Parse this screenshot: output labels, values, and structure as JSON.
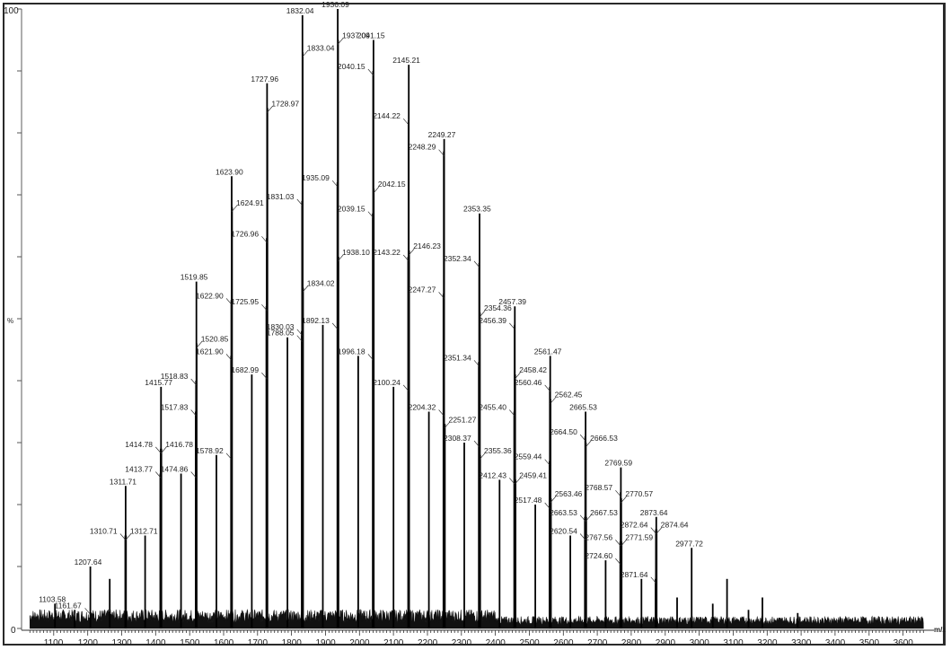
{
  "chart_data": {
    "type": "bar",
    "subtype": "mass-spectrum-stick",
    "title": "",
    "xlabel": "m/z",
    "ylabel": "%",
    "xlim": [
      1030,
      3680
    ],
    "ylim": [
      0,
      100
    ],
    "grid": false,
    "legend": null,
    "x_ticks": [
      1100,
      1200,
      1300,
      1400,
      1500,
      1600,
      1700,
      1800,
      1900,
      2000,
      2100,
      2200,
      2300,
      2400,
      2500,
      2600,
      2700,
      2800,
      2900,
      3000,
      3100,
      3200,
      3300,
      3400,
      3500,
      3600
    ],
    "y_ticks_labeled": [
      0,
      100
    ],
    "y_minor_ticks": [
      10,
      20,
      30,
      40,
      50,
      60,
      70,
      80,
      90
    ],
    "peaks": [
      {
        "mz": 1103.58,
        "intensity": 4,
        "label": "1103.58",
        "labeled": true
      },
      {
        "mz": 1161.67,
        "intensity": 3,
        "label": "1161.67",
        "labeled": true
      },
      {
        "mz": 1207.64,
        "intensity": 10,
        "label": "1207.64",
        "labeled": true
      },
      {
        "mz": 1265.0,
        "intensity": 8,
        "labeled": false
      },
      {
        "mz": 1310.71,
        "intensity": 15,
        "label": "1310.71",
        "labeled": true
      },
      {
        "mz": 1311.71,
        "intensity": 23,
        "label": "1311.71",
        "labeled": true
      },
      {
        "mz": 1312.71,
        "intensity": 15,
        "label": "1312.71",
        "labeled": true
      },
      {
        "mz": 1369.0,
        "intensity": 15,
        "labeled": false
      },
      {
        "mz": 1413.77,
        "intensity": 25,
        "label": "1413.77",
        "labeled": true
      },
      {
        "mz": 1414.78,
        "intensity": 29,
        "label": "1414.78",
        "labeled": true
      },
      {
        "mz": 1415.77,
        "intensity": 39,
        "label": "1415.77",
        "labeled": true
      },
      {
        "mz": 1416.78,
        "intensity": 29,
        "label": "1416.78",
        "labeled": true
      },
      {
        "mz": 1474.86,
        "intensity": 25,
        "label": "1474.86",
        "labeled": true
      },
      {
        "mz": 1517.83,
        "intensity": 35,
        "label": "1517.83",
        "labeled": true
      },
      {
        "mz": 1518.83,
        "intensity": 40,
        "label": "1518.83",
        "labeled": true
      },
      {
        "mz": 1519.85,
        "intensity": 56,
        "label": "1519.85",
        "labeled": true
      },
      {
        "mz": 1520.85,
        "intensity": 46,
        "label": "1520.85",
        "labeled": true
      },
      {
        "mz": 1578.92,
        "intensity": 28,
        "label": "1578.92",
        "labeled": true
      },
      {
        "mz": 1621.9,
        "intensity": 44,
        "label": "1621.90",
        "labeled": true
      },
      {
        "mz": 1622.9,
        "intensity": 53,
        "label": "1622.90",
        "labeled": true
      },
      {
        "mz": 1623.9,
        "intensity": 73,
        "label": "1623.90",
        "labeled": true
      },
      {
        "mz": 1624.91,
        "intensity": 68,
        "label": "1624.91",
        "labeled": true
      },
      {
        "mz": 1682.99,
        "intensity": 41,
        "label": "1682.99",
        "labeled": true
      },
      {
        "mz": 1725.95,
        "intensity": 52,
        "label": "1725.95",
        "labeled": true
      },
      {
        "mz": 1726.96,
        "intensity": 63,
        "label": "1726.96",
        "labeled": true
      },
      {
        "mz": 1727.96,
        "intensity": 88,
        "label": "1727.96",
        "labeled": true
      },
      {
        "mz": 1728.97,
        "intensity": 84,
        "label": "1728.97",
        "labeled": true
      },
      {
        "mz": 1788.05,
        "intensity": 47,
        "label": "1788.05",
        "labeled": true
      },
      {
        "mz": 1830.03,
        "intensity": 48,
        "label": "1830.03",
        "labeled": true
      },
      {
        "mz": 1831.03,
        "intensity": 69,
        "label": "1831.03",
        "labeled": true
      },
      {
        "mz": 1832.04,
        "intensity": 99,
        "label": "1832.04",
        "labeled": true
      },
      {
        "mz": 1833.04,
        "intensity": 93,
        "label": "1833.04",
        "labeled": true
      },
      {
        "mz": 1834.02,
        "intensity": 55,
        "label": "1834.02",
        "labeled": true
      },
      {
        "mz": 1892.13,
        "intensity": 49,
        "label": "1892.13",
        "labeled": true
      },
      {
        "mz": 1935.09,
        "intensity": 72,
        "label": "1935.09",
        "labeled": true
      },
      {
        "mz": 1936.09,
        "intensity": 100,
        "label": "1936.09",
        "labeled": true
      },
      {
        "mz": 1937.09,
        "intensity": 95,
        "label": "1937.09",
        "labeled": true
      },
      {
        "mz": 1938.1,
        "intensity": 60,
        "label": "1938.10",
        "labeled": true
      },
      {
        "mz": 1996.18,
        "intensity": 44,
        "label": "1996.18",
        "labeled": true
      },
      {
        "mz": 2039.15,
        "intensity": 67,
        "label": "2039.15",
        "labeled": true
      },
      {
        "mz": 2040.15,
        "intensity": 90,
        "label": "2040.15",
        "labeled": true
      },
      {
        "mz": 2041.15,
        "intensity": 95,
        "label": "2041.15",
        "labeled": true
      },
      {
        "mz": 2042.15,
        "intensity": 71,
        "label": "2042.15",
        "labeled": true
      },
      {
        "mz": 2100.24,
        "intensity": 39,
        "label": "2100.24",
        "labeled": true
      },
      {
        "mz": 2143.22,
        "intensity": 60,
        "label": "2143.22",
        "labeled": true
      },
      {
        "mz": 2144.22,
        "intensity": 82,
        "label": "2144.22",
        "labeled": true
      },
      {
        "mz": 2145.21,
        "intensity": 91,
        "label": "2145.21",
        "labeled": true
      },
      {
        "mz": 2146.23,
        "intensity": 61,
        "label": "2146.23",
        "labeled": true
      },
      {
        "mz": 2204.32,
        "intensity": 35,
        "label": "2204.32",
        "labeled": true
      },
      {
        "mz": 2247.27,
        "intensity": 54,
        "label": "2247.27",
        "labeled": true
      },
      {
        "mz": 2248.29,
        "intensity": 77,
        "label": "2248.29",
        "labeled": true
      },
      {
        "mz": 2249.27,
        "intensity": 79,
        "label": "2249.27",
        "labeled": true
      },
      {
        "mz": 2251.27,
        "intensity": 33,
        "label": "2251.27",
        "labeled": true
      },
      {
        "mz": 2308.37,
        "intensity": 30,
        "label": "2308.37",
        "labeled": true
      },
      {
        "mz": 2351.34,
        "intensity": 43,
        "label": "2351.34",
        "labeled": true
      },
      {
        "mz": 2352.34,
        "intensity": 59,
        "label": "2352.34",
        "labeled": true
      },
      {
        "mz": 2353.35,
        "intensity": 67,
        "label": "2353.35",
        "labeled": true
      },
      {
        "mz": 2354.36,
        "intensity": 51,
        "label": "2354.36",
        "labeled": true
      },
      {
        "mz": 2355.36,
        "intensity": 28,
        "label": "2355.36",
        "labeled": true
      },
      {
        "mz": 2412.43,
        "intensity": 24,
        "label": "2412.43",
        "labeled": true
      },
      {
        "mz": 2455.4,
        "intensity": 35,
        "label": "2455.40",
        "labeled": true
      },
      {
        "mz": 2456.39,
        "intensity": 49,
        "label": "2456.39",
        "labeled": true
      },
      {
        "mz": 2457.39,
        "intensity": 52,
        "label": "2457.39",
        "labeled": true
      },
      {
        "mz": 2458.42,
        "intensity": 41,
        "label": "2458.42",
        "labeled": true
      },
      {
        "mz": 2459.41,
        "intensity": 24,
        "label": "2459.41",
        "labeled": true
      },
      {
        "mz": 2517.48,
        "intensity": 20,
        "label": "2517.48",
        "labeled": true
      },
      {
        "mz": 2559.44,
        "intensity": 27,
        "label": "2559.44",
        "labeled": true
      },
      {
        "mz": 2560.46,
        "intensity": 39,
        "label": "2560.46",
        "labeled": true
      },
      {
        "mz": 2561.47,
        "intensity": 44,
        "label": "2561.47",
        "labeled": true
      },
      {
        "mz": 2562.45,
        "intensity": 37,
        "label": "2562.45",
        "labeled": true
      },
      {
        "mz": 2563.46,
        "intensity": 21,
        "label": "2563.46",
        "labeled": true
      },
      {
        "mz": 2620.54,
        "intensity": 15,
        "label": "2620.54",
        "labeled": true
      },
      {
        "mz": 2663.53,
        "intensity": 18,
        "label": "2663.53",
        "labeled": true
      },
      {
        "mz": 2664.5,
        "intensity": 31,
        "label": "2664.50",
        "labeled": true
      },
      {
        "mz": 2665.53,
        "intensity": 35,
        "label": "2665.53",
        "labeled": true
      },
      {
        "mz": 2666.53,
        "intensity": 30,
        "label": "2666.53",
        "labeled": true
      },
      {
        "mz": 2667.53,
        "intensity": 18,
        "label": "2667.53",
        "labeled": true
      },
      {
        "mz": 2724.6,
        "intensity": 11,
        "label": "2724.60",
        "labeled": true
      },
      {
        "mz": 2767.56,
        "intensity": 14,
        "label": "2767.56",
        "labeled": true
      },
      {
        "mz": 2768.57,
        "intensity": 22,
        "label": "2768.57",
        "labeled": true
      },
      {
        "mz": 2769.59,
        "intensity": 26,
        "label": "2769.59",
        "labeled": true
      },
      {
        "mz": 2770.57,
        "intensity": 21,
        "label": "2770.57",
        "labeled": true
      },
      {
        "mz": 2771.59,
        "intensity": 14,
        "label": "2771.59",
        "labeled": true
      },
      {
        "mz": 2830.0,
        "intensity": 8,
        "labeled": false
      },
      {
        "mz": 2871.64,
        "intensity": 8,
        "label": "2871.64",
        "labeled": true
      },
      {
        "mz": 2872.64,
        "intensity": 16,
        "label": "2872.64",
        "labeled": true
      },
      {
        "mz": 2873.64,
        "intensity": 18,
        "label": "2873.64",
        "labeled": true
      },
      {
        "mz": 2874.64,
        "intensity": 16,
        "label": "2874.64",
        "labeled": true
      },
      {
        "mz": 2935.0,
        "intensity": 5,
        "labeled": false
      },
      {
        "mz": 2977.72,
        "intensity": 13,
        "label": "2977.72",
        "labeled": true
      },
      {
        "mz": 3040.0,
        "intensity": 4,
        "labeled": false
      },
      {
        "mz": 3082.0,
        "intensity": 8,
        "labeled": false
      },
      {
        "mz": 3145.0,
        "intensity": 3,
        "labeled": false
      },
      {
        "mz": 3186.0,
        "intensity": 5,
        "labeled": false
      },
      {
        "mz": 3290.0,
        "intensity": 2.5,
        "labeled": false
      }
    ]
  }
}
